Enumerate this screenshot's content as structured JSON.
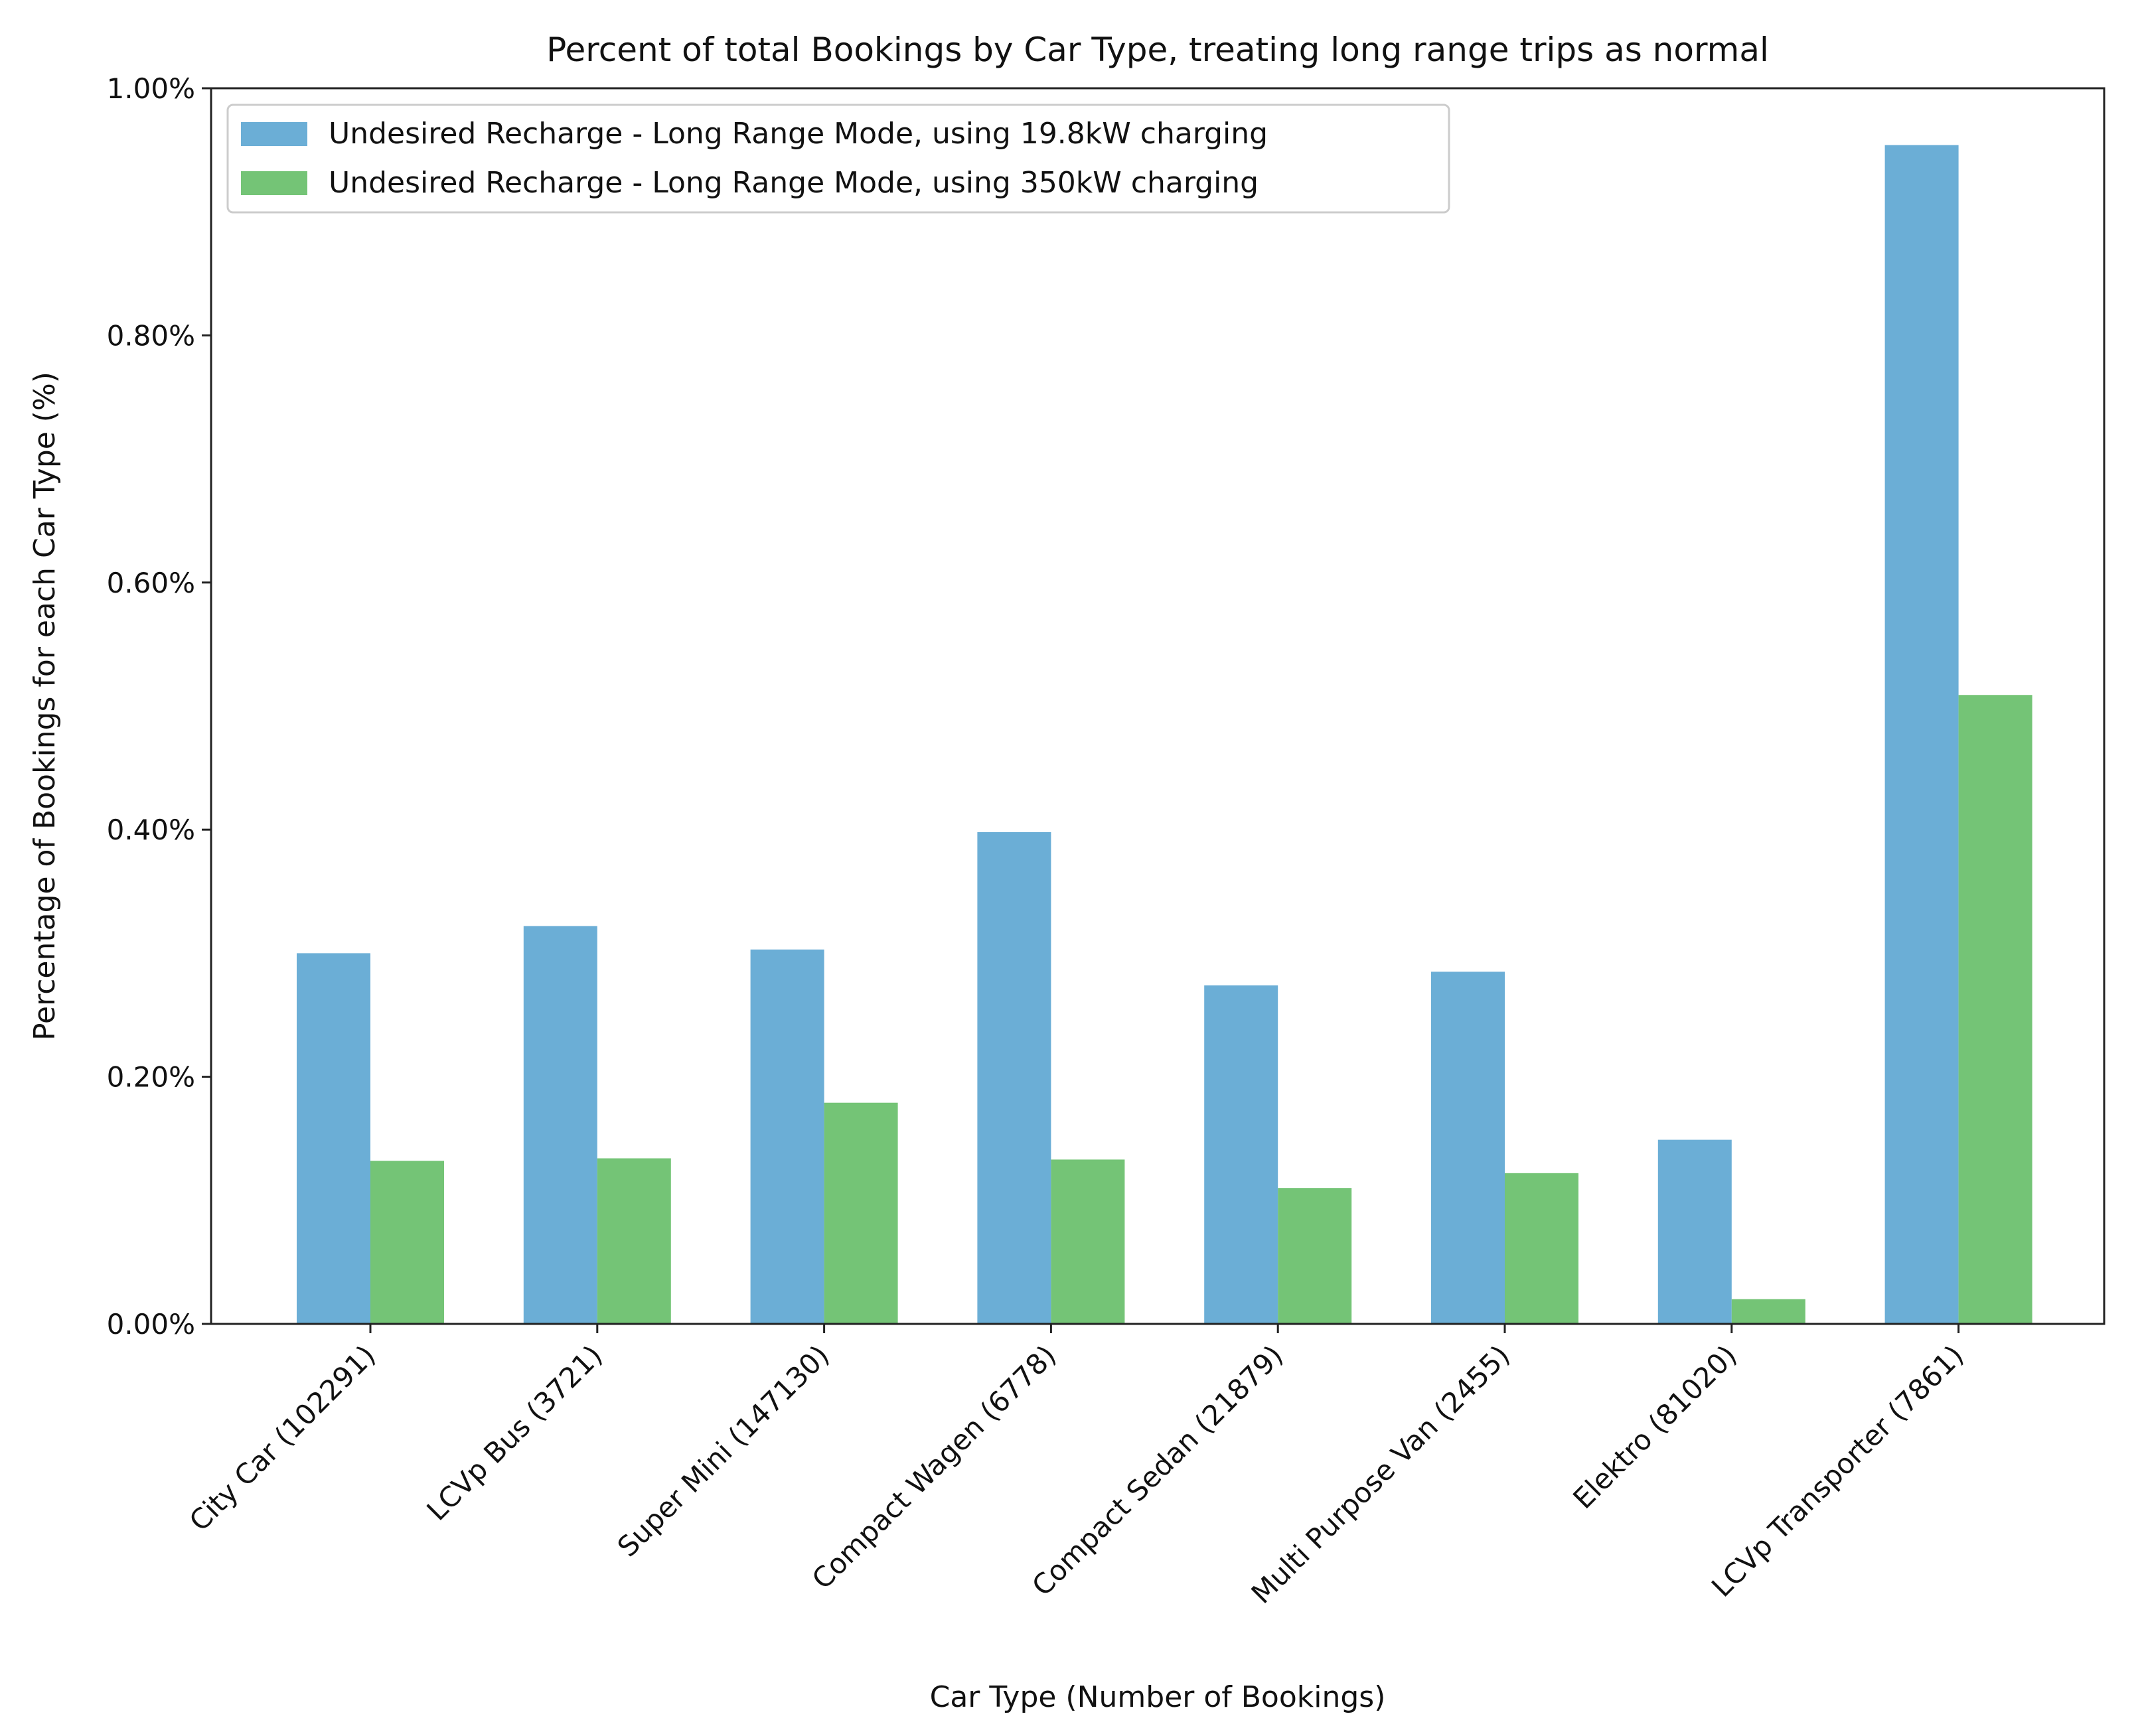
{
  "chart_data": {
    "type": "bar",
    "title": "Percent of total Bookings by Car Type, treating long range trips as normal",
    "xlabel": "Car Type (Number of Bookings)",
    "ylabel": "Percentage of Bookings for each Car Type (%)",
    "ylim": [
      0,
      1.0
    ],
    "yticks": [
      0.0,
      0.2,
      0.4,
      0.6,
      0.8,
      1.0
    ],
    "ytick_labels": [
      "0.00%",
      "0.20%",
      "0.40%",
      "0.60%",
      "0.80%",
      "1.00%"
    ],
    "categories": [
      "City Car (102291)",
      "LCVp Bus (3721)",
      "Super Mini (147130)",
      "Compact Wagen (6778)",
      "Compact Sedan (21879)",
      "Multi Purpose Van (2455)",
      "Elektro (81020)",
      "LCVp Transporter (7861)"
    ],
    "series": [
      {
        "name": "Undesired Recharge - Long Range Mode, using 19.8kW charging",
        "color": "#6baed6",
        "values": [
          0.3,
          0.322,
          0.303,
          0.398,
          0.274,
          0.285,
          0.149,
          0.954
        ]
      },
      {
        "name": "Undesired Recharge - Long Range Mode, using 350kW charging",
        "color": "#74c476",
        "values": [
          0.132,
          0.134,
          0.179,
          0.133,
          0.11,
          0.122,
          0.02,
          0.509
        ]
      }
    ],
    "legend_position": "top-left",
    "grid": false
  }
}
